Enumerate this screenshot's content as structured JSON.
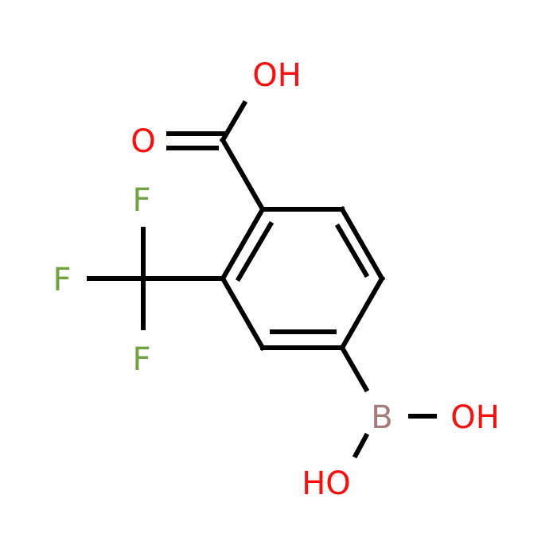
{
  "atoms": [
    {
      "label": "OH"
    },
    {
      "label": "O"
    },
    {
      "label": "F"
    },
    {
      "label": "F"
    },
    {
      "label": "F"
    },
    {
      "label": "B"
    },
    {
      "label": "OH"
    },
    {
      "label": "HO"
    }
  ]
}
